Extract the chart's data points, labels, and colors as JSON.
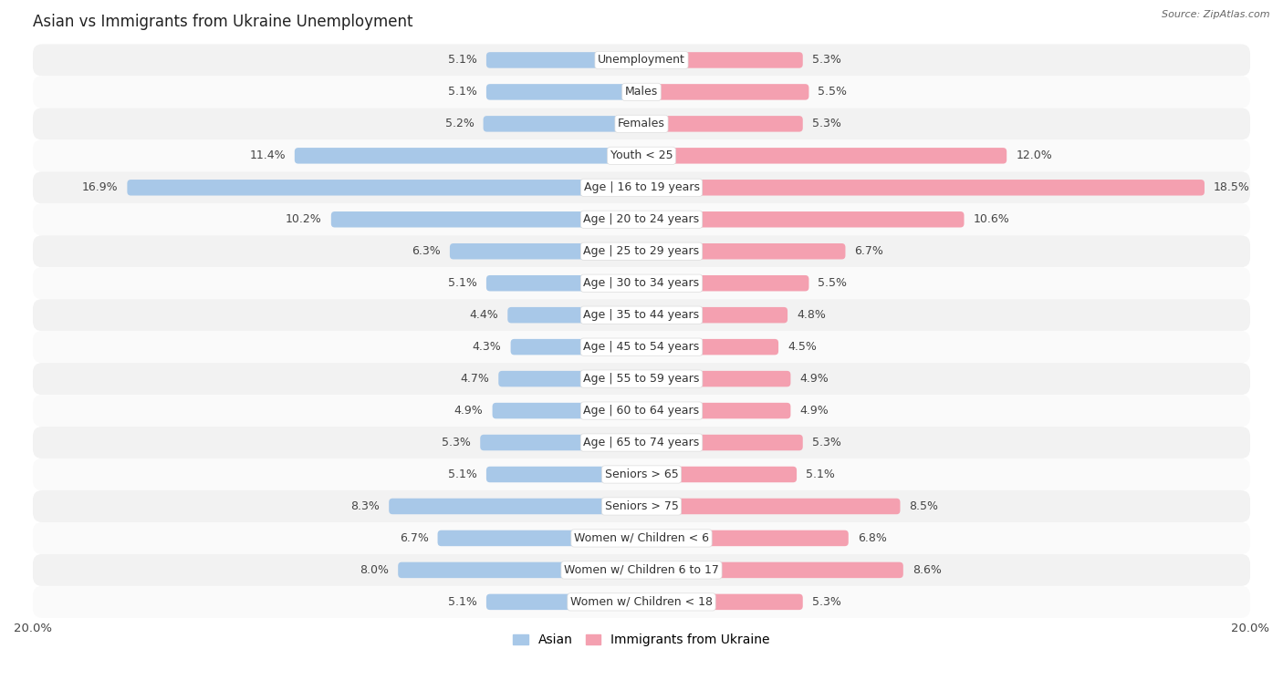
{
  "title": "Asian vs Immigrants from Ukraine Unemployment",
  "source": "Source: ZipAtlas.com",
  "categories": [
    "Unemployment",
    "Males",
    "Females",
    "Youth < 25",
    "Age | 16 to 19 years",
    "Age | 20 to 24 years",
    "Age | 25 to 29 years",
    "Age | 30 to 34 years",
    "Age | 35 to 44 years",
    "Age | 45 to 54 years",
    "Age | 55 to 59 years",
    "Age | 60 to 64 years",
    "Age | 65 to 74 years",
    "Seniors > 65",
    "Seniors > 75",
    "Women w/ Children < 6",
    "Women w/ Children 6 to 17",
    "Women w/ Children < 18"
  ],
  "asian_values": [
    5.1,
    5.1,
    5.2,
    11.4,
    16.9,
    10.2,
    6.3,
    5.1,
    4.4,
    4.3,
    4.7,
    4.9,
    5.3,
    5.1,
    8.3,
    6.7,
    8.0,
    5.1
  ],
  "ukraine_values": [
    5.3,
    5.5,
    5.3,
    12.0,
    18.5,
    10.6,
    6.7,
    5.5,
    4.8,
    4.5,
    4.9,
    4.9,
    5.3,
    5.1,
    8.5,
    6.8,
    8.6,
    5.3
  ],
  "asian_color": "#a8c8e8",
  "ukraine_color": "#f4a0b0",
  "xlim": 20.0,
  "background_color": "#ffffff",
  "row_color_even": "#f2f2f2",
  "row_color_odd": "#fafafa",
  "bar_height": 0.5,
  "label_fontsize": 9.0,
  "value_fontsize": 9.0,
  "title_fontsize": 12,
  "legend_labels": [
    "Asian",
    "Immigrants from Ukraine"
  ]
}
